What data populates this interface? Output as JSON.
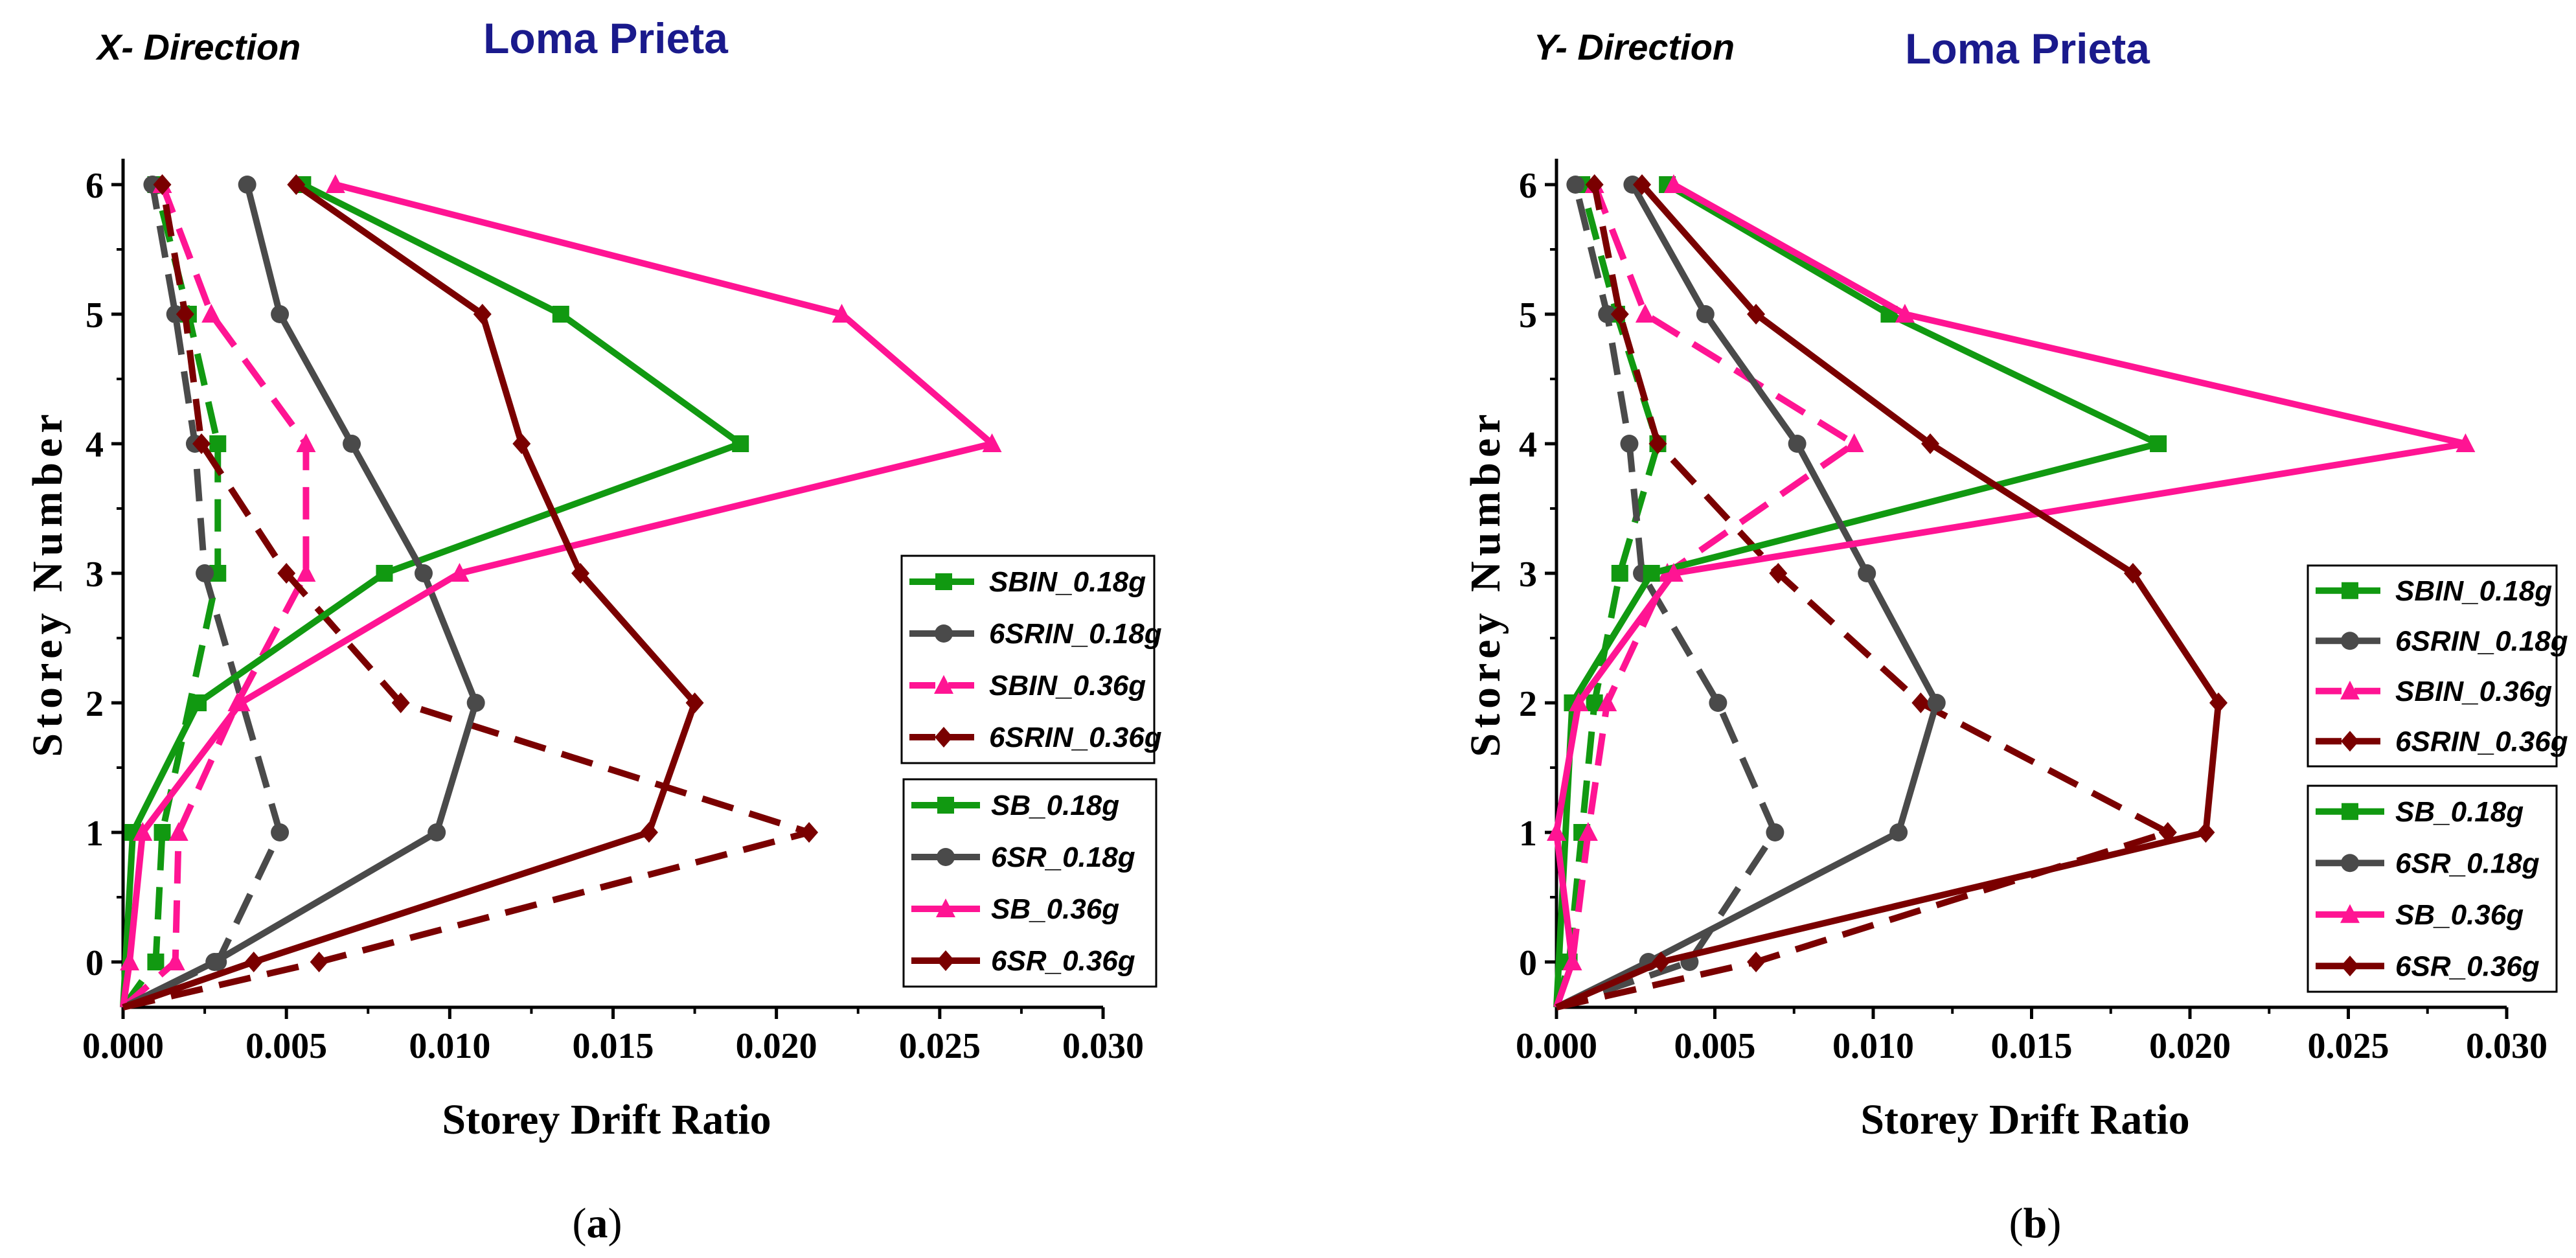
{
  "chart_data": [
    {
      "type": "line",
      "panel_label": "a",
      "direction_label": "X- Direction",
      "title": "Loma Prieta",
      "xlabel": "Storey Drift Ratio",
      "ylabel": "Storey Number",
      "xlim": [
        0.0,
        0.03
      ],
      "ylim": [
        -0.35,
        6.2
      ],
      "xticks": [
        "0.000",
        "0.005",
        "0.010",
        "0.015",
        "0.020",
        "0.025",
        "0.030"
      ],
      "yticks": [
        "0",
        "1",
        "2",
        "3",
        "4",
        "5",
        "6"
      ],
      "legend_groups": [
        [
          "SBIN_0.18g",
          "6SRIN_0.18g",
          "SBIN_0.36g",
          "6SRIN_0.36g"
        ],
        [
          "SB_0.18g",
          "6SR_0.18g",
          "SB_0.36g",
          "6SR_0.36g"
        ]
      ],
      "series": [
        {
          "name": "SBIN_0.18g",
          "color": "#119911",
          "dash": true,
          "marker": "square",
          "x": [
            0.0,
            0.001,
            0.0012,
            0.0029,
            0.0029,
            0.002,
            0.001
          ],
          "y": [
            -0.35,
            0,
            1,
            3,
            4,
            5,
            6
          ]
        },
        {
          "name": "6SRIN_0.18g",
          "color": "#4a4a4a",
          "dash": true,
          "marker": "circle",
          "x": [
            0.0,
            0.0029,
            0.0048,
            0.0025,
            0.0022,
            0.0016,
            0.0009
          ],
          "y": [
            -0.35,
            0,
            1,
            3,
            4,
            5,
            6
          ]
        },
        {
          "name": "SBIN_0.36g",
          "color": "#ff1493",
          "dash": true,
          "marker": "triangle",
          "x": [
            0.0,
            0.0016,
            0.0017,
            0.0035,
            0.0056,
            0.0056,
            0.0027,
            0.0012
          ],
          "y": [
            -0.35,
            0,
            1,
            2,
            3,
            4,
            5,
            6
          ]
        },
        {
          "name": "6SRIN_0.36g",
          "color": "#7a0000",
          "dash": true,
          "marker": "diamond",
          "x": [
            0.0,
            0.006,
            0.021,
            0.0085,
            0.005,
            0.0024,
            0.0019,
            0.0012
          ],
          "y": [
            -0.35,
            0,
            1,
            2,
            3,
            4,
            5,
            6
          ]
        },
        {
          "name": "SB_0.18g",
          "color": "#119911",
          "dash": false,
          "marker": "square",
          "x": [
            0.0,
            0.0003,
            0.0023,
            0.008,
            0.0189,
            0.0134,
            0.0055
          ],
          "y": [
            -0.35,
            1,
            2,
            3,
            4,
            5,
            6
          ]
        },
        {
          "name": "6SR_0.18g",
          "color": "#4a4a4a",
          "dash": false,
          "marker": "circle",
          "x": [
            0.0,
            0.0028,
            0.0096,
            0.0108,
            0.0092,
            0.007,
            0.0048,
            0.0038
          ],
          "y": [
            -0.35,
            0,
            1,
            2,
            3,
            4,
            5,
            6
          ]
        },
        {
          "name": "SB_0.36g",
          "color": "#ff1493",
          "dash": false,
          "marker": "triangle",
          "x": [
            0.0,
            0.0002,
            0.0006,
            0.0036,
            0.0103,
            0.0266,
            0.022,
            0.0065
          ],
          "y": [
            -0.35,
            0,
            1,
            2,
            3,
            4,
            5,
            6
          ]
        },
        {
          "name": "6SR_0.36g",
          "color": "#7a0000",
          "dash": false,
          "marker": "diamond",
          "x": [
            0.0,
            0.004,
            0.0161,
            0.0175,
            0.014,
            0.0122,
            0.011,
            0.0053
          ],
          "y": [
            -0.35,
            0,
            1,
            2,
            3,
            4,
            5,
            6
          ]
        }
      ]
    },
    {
      "type": "line",
      "panel_label": "b",
      "direction_label": "Y- Direction",
      "title": "Loma Prieta",
      "xlabel": "Storey Drift Ratio",
      "ylabel": "Storey Number",
      "xlim": [
        0.0,
        0.03
      ],
      "ylim": [
        -0.35,
        6.2
      ],
      "xticks": [
        "0.000",
        "0.005",
        "0.010",
        "0.015",
        "0.020",
        "0.025",
        "0.030"
      ],
      "yticks": [
        "0",
        "1",
        "2",
        "3",
        "4",
        "5",
        "6"
      ],
      "legend_groups": [
        [
          "SBIN_0.18g",
          "6SRIN_0.18g",
          "SBIN_0.36g",
          "6SRIN_0.36g"
        ],
        [
          "SB_0.18g",
          "6SR_0.18g",
          "SB_0.36g",
          "6SR_0.36g"
        ]
      ],
      "series": [
        {
          "name": "SBIN_0.18g",
          "color": "#119911",
          "dash": true,
          "marker": "square",
          "x": [
            0.0,
            0.0004,
            0.0008,
            0.0012,
            0.002,
            0.0032,
            0.0019,
            0.0008
          ],
          "y": [
            -0.35,
            0,
            1,
            2,
            3,
            4,
            5,
            6
          ]
        },
        {
          "name": "6SRIN_0.18g",
          "color": "#4a4a4a",
          "dash": true,
          "marker": "circle",
          "x": [
            0.0,
            0.0042,
            0.0069,
            0.0051,
            0.0027,
            0.0023,
            0.0016,
            0.0006
          ],
          "y": [
            -0.35,
            0,
            1,
            2,
            3,
            4,
            5,
            6
          ]
        },
        {
          "name": "SBIN_0.36g",
          "color": "#ff1493",
          "dash": true,
          "marker": "triangle",
          "x": [
            0.0,
            0.0005,
            0.001,
            0.0016,
            0.0035,
            0.0094,
            0.0028,
            0.0012
          ],
          "y": [
            -0.35,
            0,
            1,
            2,
            3,
            4,
            5,
            6
          ]
        },
        {
          "name": "6SRIN_0.36g",
          "color": "#7a0000",
          "dash": true,
          "marker": "diamond",
          "x": [
            0.0,
            0.0063,
            0.0193,
            0.0115,
            0.007,
            0.0032,
            0.002,
            0.0012
          ],
          "y": [
            -0.35,
            0,
            1,
            2,
            3,
            4,
            5,
            6
          ]
        },
        {
          "name": "SB_0.18g",
          "color": "#119911",
          "dash": false,
          "marker": "square",
          "x": [
            0.0,
            0.0005,
            0.003,
            0.019,
            0.0105,
            0.0035
          ],
          "y": [
            -0.35,
            2,
            3,
            4,
            5,
            6
          ]
        },
        {
          "name": "6SR_0.18g",
          "color": "#4a4a4a",
          "dash": false,
          "marker": "circle",
          "x": [
            0.0,
            0.0029,
            0.0108,
            0.012,
            0.0098,
            0.0076,
            0.0047,
            0.0024
          ],
          "y": [
            -0.35,
            0,
            1,
            2,
            3,
            4,
            5,
            6
          ]
        },
        {
          "name": "SB_0.36g",
          "color": "#ff1493",
          "dash": false,
          "marker": "triangle",
          "x": [
            0.0,
            0.0005,
            0.0,
            0.0007,
            0.0037,
            0.0287,
            0.011,
            0.0037
          ],
          "y": [
            -0.35,
            0,
            1,
            2,
            3,
            4,
            5,
            6
          ]
        },
        {
          "name": "6SR_0.36g",
          "color": "#7a0000",
          "dash": false,
          "marker": "diamond",
          "x": [
            0.0,
            0.0033,
            0.0205,
            0.0209,
            0.0182,
            0.0118,
            0.0063,
            0.0027
          ],
          "y": [
            -0.35,
            0,
            1,
            2,
            3,
            4,
            5,
            6
          ]
        }
      ]
    }
  ]
}
